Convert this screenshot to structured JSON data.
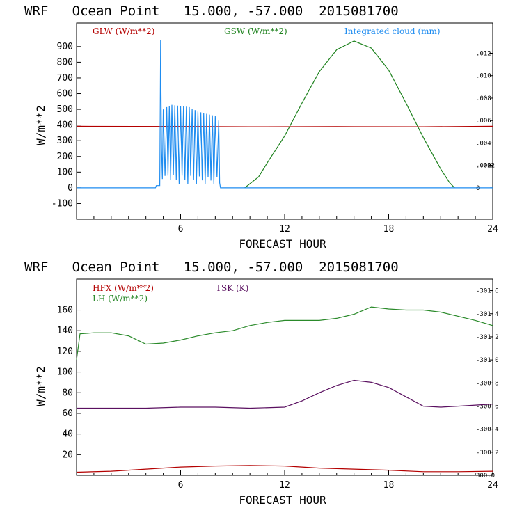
{
  "chart_data": [
    {
      "type": "line",
      "title": "WRF   Ocean Point   15.000, -57.000  2015081700",
      "xlabel": "FORECAST HOUR",
      "ylabel": "W/m**2",
      "xlim": [
        0,
        24
      ],
      "ylim": [
        -200,
        1050
      ],
      "xticks": [
        "6",
        "12",
        "18",
        "24"
      ],
      "yticks": [
        "-100",
        "0",
        "100",
        "200",
        "300",
        "400",
        "500",
        "600",
        "700",
        "800",
        "900"
      ],
      "y2lim": [
        -0.0028,
        0.0147
      ],
      "y2ticks": [
        "-.002",
        "0",
        ".002",
        ".004",
        ".006",
        ".008",
        ".010",
        ".012"
      ],
      "series": [
        {
          "name": "GLW (W/m**2)",
          "color": "#b40000",
          "axis": "left",
          "x": [
            0,
            6,
            10,
            15,
            20,
            24
          ],
          "values": [
            392,
            391,
            389,
            390,
            389,
            392
          ]
        },
        {
          "name": "GSW (W/m**2)",
          "color": "#1e821e",
          "axis": "left",
          "x": [
            9.7,
            10.5,
            11,
            12,
            13,
            14,
            15,
            16,
            17,
            18,
            19,
            20,
            21,
            21.5,
            21.8
          ],
          "values": [
            0,
            70,
            160,
            330,
            540,
            740,
            880,
            935,
            890,
            750,
            540,
            320,
            120,
            35,
            0
          ]
        },
        {
          "name": "Integrated cloud (mm)",
          "color": "#1e8cf0",
          "axis": "right",
          "x": [
            0,
            4.55,
            4.6,
            4.8,
            4.85,
            4.9,
            5.0,
            5.2,
            5.5,
            6,
            6.5,
            7,
            7.5,
            8,
            8.2,
            8.3,
            24
          ],
          "values": [
            0,
            0,
            0.0002,
            0.0002,
            0.0132,
            0.0035,
            0.007,
            0.0072,
            0.0074,
            0.0073,
            0.0072,
            0.0068,
            0.0066,
            0.0064,
            0.006,
            0,
            0
          ]
        }
      ]
    },
    {
      "type": "line",
      "title": "WRF   Ocean Point   15.000, -57.000  2015081700",
      "xlabel": "FORECAST HOUR",
      "ylabel": "W/m**2",
      "xlim": [
        0,
        24
      ],
      "ylim": [
        0,
        190
      ],
      "xticks": [
        "6",
        "12",
        "18",
        "24"
      ],
      "yticks": [
        "20",
        "40",
        "60",
        "80",
        "100",
        "120",
        "140",
        "160"
      ],
      "y2lim": [
        300.0,
        301.7
      ],
      "y2ticks": [
        "300.0",
        "-300.2",
        "-300.4",
        "-300.6",
        "-300.8",
        "-301.0",
        "-301.2",
        "-301.4",
        "-301.6"
      ],
      "series": [
        {
          "name": "HFX (W/m**2)",
          "color": "#b40000",
          "axis": "left",
          "x": [
            0,
            2,
            4,
            6,
            8,
            10,
            12,
            14,
            16,
            18,
            20,
            22,
            24
          ],
          "values": [
            3,
            4,
            6,
            8,
            9,
            9.5,
            9,
            7,
            6,
            5,
            3.5,
            3.5,
            4
          ]
        },
        {
          "name": "LH  (W/m**2)",
          "color": "#2a8a2a",
          "axis": "left",
          "x": [
            0,
            0.2,
            1,
            2,
            3,
            4,
            5,
            6,
            7,
            8,
            9,
            10,
            11,
            12,
            13,
            14,
            15,
            16,
            17,
            18,
            19,
            20,
            21,
            22,
            23,
            24
          ],
          "values": [
            112,
            137,
            138,
            138,
            135,
            127,
            128,
            131,
            135,
            138,
            140,
            145,
            148,
            150,
            150,
            150,
            152,
            156,
            163,
            161,
            160,
            160,
            158,
            154,
            150,
            145
          ]
        },
        {
          "name": "TSK (K)",
          "color": "#5a1060",
          "axis": "left",
          "x": [
            0,
            2,
            4,
            6,
            8,
            10,
            12,
            13,
            14,
            15,
            16,
            17,
            18,
            19,
            20,
            21,
            22,
            24
          ],
          "values": [
            65,
            65,
            65,
            66,
            66,
            65,
            66,
            72,
            80,
            87,
            92,
            90,
            85,
            76,
            67,
            66,
            67,
            69
          ]
        }
      ]
    }
  ]
}
